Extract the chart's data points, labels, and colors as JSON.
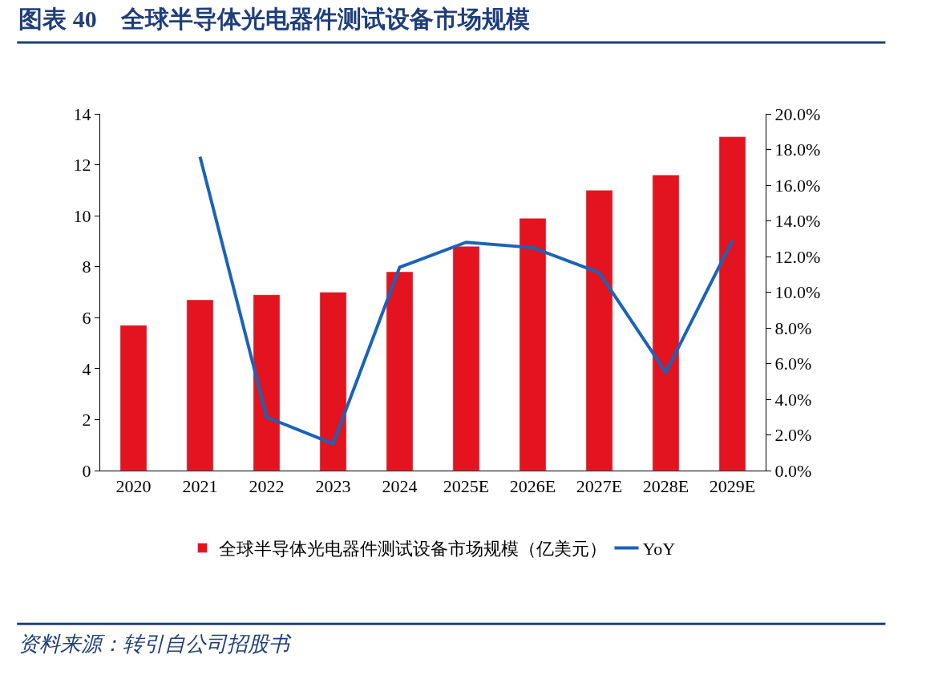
{
  "chart_data": {
    "type": "bar",
    "title": "图表 40　全球半导体光电器件测试设备市场规模",
    "categories": [
      "2020",
      "2021",
      "2022",
      "2023",
      "2024",
      "2025E",
      "2026E",
      "2027E",
      "2028E",
      "2029E"
    ],
    "series": [
      {
        "name": "全球半导体光电器件测试设备市场规模（亿美元）",
        "color": "#e3141f",
        "values": [
          5.7,
          6.7,
          6.9,
          7.0,
          7.8,
          8.8,
          9.9,
          11.0,
          11.6,
          13.1
        ]
      },
      {
        "name": "YoY",
        "type": "line",
        "axis": "y2",
        "color": "#1a63b8",
        "values": [
          null,
          17.6,
          3.0,
          1.5,
          11.4,
          12.8,
          12.5,
          11.1,
          5.5,
          12.9
        ]
      }
    ],
    "ylim": [
      0,
      14
    ],
    "yticks": [
      0,
      2,
      4,
      6,
      8,
      10,
      12,
      14
    ],
    "y2lim": [
      0,
      20
    ],
    "y2ticks": [
      {
        "value": 0,
        "label": "0.0%"
      },
      {
        "value": 2,
        "label": "2.0%"
      },
      {
        "value": 4,
        "label": "4.0%"
      },
      {
        "value": 6,
        "label": "6.0%"
      },
      {
        "value": 8,
        "label": "8.0%"
      },
      {
        "value": 10,
        "label": "10.0%"
      },
      {
        "value": 12,
        "label": "12.0%"
      },
      {
        "value": 14,
        "label": "14.0%"
      },
      {
        "value": 16,
        "label": "16.0%"
      },
      {
        "value": 18,
        "label": "18.0%"
      },
      {
        "value": 20,
        "label": "20.0%"
      }
    ],
    "legend": "bottom",
    "marker": "none",
    "line_style": "solid",
    "annotations": [
      "资料来源：转引自公司招股书"
    ]
  }
}
